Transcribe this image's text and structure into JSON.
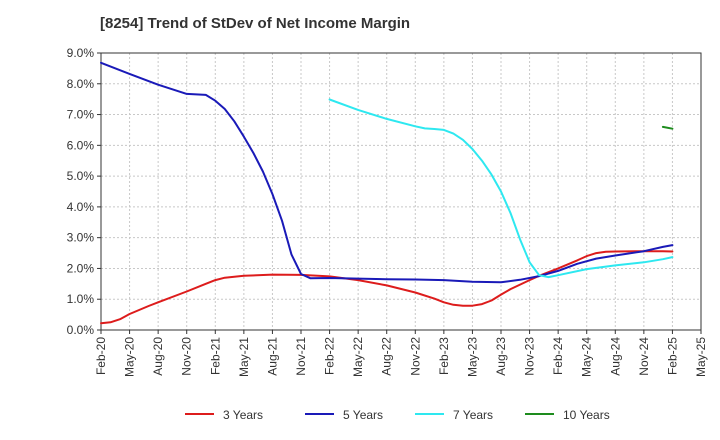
{
  "chart_data": {
    "type": "line",
    "title": "[8254]  Trend of StDev of Net Income Margin",
    "xlabel": "",
    "ylabel": "",
    "ylim": [
      0,
      9
    ],
    "yticks": [
      "0.0%",
      "1.0%",
      "2.0%",
      "3.0%",
      "4.0%",
      "5.0%",
      "6.0%",
      "7.0%",
      "8.0%",
      "9.0%"
    ],
    "xticks": [
      "Feb-20",
      "May-20",
      "Aug-20",
      "Nov-20",
      "Feb-21",
      "May-21",
      "Aug-21",
      "Nov-21",
      "Feb-22",
      "May-22",
      "Aug-22",
      "Nov-22",
      "Feb-23",
      "May-23",
      "Aug-23",
      "Nov-23",
      "Feb-24",
      "May-24",
      "Aug-24",
      "Nov-24",
      "Feb-25",
      "May-25"
    ],
    "grid": true,
    "legend_position": "bottom",
    "series": [
      {
        "name": "3 Years",
        "color": "#dd1c1c",
        "points": [
          [
            "Feb-20",
            0.22
          ],
          [
            "Mar-20",
            0.25
          ],
          [
            "Apr-20",
            0.35
          ],
          [
            "May-20",
            0.52
          ],
          [
            "Jul-20",
            0.78
          ],
          [
            "Aug-20",
            0.9
          ],
          [
            "Nov-20",
            1.25
          ],
          [
            "Jan-21",
            1.5
          ],
          [
            "Feb-21",
            1.62
          ],
          [
            "Mar-21",
            1.7
          ],
          [
            "May-21",
            1.76
          ],
          [
            "Aug-21",
            1.8
          ],
          [
            "Nov-21",
            1.79
          ],
          [
            "Feb-22",
            1.74
          ],
          [
            "May-22",
            1.62
          ],
          [
            "Aug-22",
            1.45
          ],
          [
            "Nov-22",
            1.22
          ],
          [
            "Jan-23",
            1.02
          ],
          [
            "Feb-23",
            0.9
          ],
          [
            "Mar-23",
            0.82
          ],
          [
            "Apr-23",
            0.79
          ],
          [
            "May-23",
            0.79
          ],
          [
            "Jun-23",
            0.84
          ],
          [
            "Jul-23",
            0.96
          ],
          [
            "Aug-23",
            1.15
          ],
          [
            "Sep-23",
            1.33
          ],
          [
            "Nov-23",
            1.62
          ],
          [
            "Dec-23",
            1.76
          ],
          [
            "Feb-24",
            2.0
          ],
          [
            "Apr-24",
            2.26
          ],
          [
            "May-24",
            2.4
          ],
          [
            "Jun-24",
            2.5
          ],
          [
            "Jul-24",
            2.54
          ],
          [
            "Aug-24",
            2.55
          ],
          [
            "Nov-24",
            2.56
          ],
          [
            "Jan-25",
            2.56
          ],
          [
            "Feb-25",
            2.55
          ]
        ]
      },
      {
        "name": "5 Years",
        "color": "#1a1ab8",
        "points": [
          [
            "Feb-20",
            8.68
          ],
          [
            "May-20",
            8.32
          ],
          [
            "Aug-20",
            7.97
          ],
          [
            "Nov-20",
            7.67
          ],
          [
            "Jan-21",
            7.64
          ],
          [
            "Feb-21",
            7.45
          ],
          [
            "Mar-21",
            7.18
          ],
          [
            "Apr-21",
            6.78
          ],
          [
            "May-21",
            6.28
          ],
          [
            "Jun-21",
            5.75
          ],
          [
            "Jul-21",
            5.15
          ],
          [
            "Aug-21",
            4.42
          ],
          [
            "Sep-21",
            3.55
          ],
          [
            "Oct-21",
            2.45
          ],
          [
            "Nov-21",
            1.82
          ],
          [
            "Dec-21",
            1.68
          ],
          [
            "Feb-22",
            1.69
          ],
          [
            "May-22",
            1.67
          ],
          [
            "Aug-22",
            1.65
          ],
          [
            "Nov-22",
            1.64
          ],
          [
            "Feb-23",
            1.62
          ],
          [
            "May-23",
            1.57
          ],
          [
            "Aug-23",
            1.55
          ],
          [
            "Oct-23",
            1.63
          ],
          [
            "Dec-23",
            1.75
          ],
          [
            "Feb-24",
            1.92
          ],
          [
            "Apr-24",
            2.15
          ],
          [
            "Jun-24",
            2.32
          ],
          [
            "Aug-24",
            2.42
          ],
          [
            "Nov-24",
            2.56
          ],
          [
            "Jan-25",
            2.7
          ],
          [
            "Feb-25",
            2.76
          ]
        ]
      },
      {
        "name": "7 Years",
        "color": "#2ee8f0",
        "points": [
          [
            "Feb-22",
            7.49
          ],
          [
            "May-22",
            7.15
          ],
          [
            "Aug-22",
            6.86
          ],
          [
            "Nov-22",
            6.62
          ],
          [
            "Dec-22",
            6.55
          ],
          [
            "Jan-23",
            6.53
          ],
          [
            "Feb-23",
            6.5
          ],
          [
            "Mar-23",
            6.38
          ],
          [
            "Apr-23",
            6.18
          ],
          [
            "May-23",
            5.88
          ],
          [
            "Jun-23",
            5.5
          ],
          [
            "Jul-23",
            5.05
          ],
          [
            "Aug-23",
            4.5
          ],
          [
            "Sep-23",
            3.8
          ],
          [
            "Oct-23",
            2.95
          ],
          [
            "Nov-23",
            2.2
          ],
          [
            "Dec-23",
            1.78
          ],
          [
            "Jan-24",
            1.72
          ],
          [
            "Feb-24",
            1.78
          ],
          [
            "May-24",
            1.98
          ],
          [
            "Aug-24",
            2.1
          ],
          [
            "Nov-24",
            2.2
          ],
          [
            "Jan-25",
            2.3
          ],
          [
            "Feb-25",
            2.37
          ]
        ]
      },
      {
        "name": "10 Years",
        "color": "#1e8c1e",
        "points": [
          [
            "Jan-25",
            6.6
          ],
          [
            "Feb-25",
            6.54
          ]
        ]
      }
    ]
  }
}
